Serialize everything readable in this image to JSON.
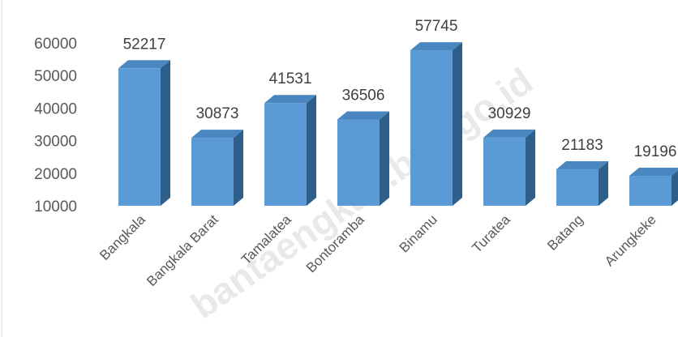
{
  "watermark": "bantaengkab.bps.go.id",
  "chart_data": {
    "type": "bar",
    "style": "3d-column",
    "categories": [
      "Bangkala",
      "Bangkala Barat",
      "Tamalatea",
      "Bontoramba",
      "Binamu",
      "Turatea",
      "Batang",
      "Arungkeke"
    ],
    "values": [
      52217,
      30873,
      41531,
      36506,
      57745,
      30929,
      21183,
      19196
    ],
    "title": "",
    "xlabel": "",
    "ylabel": "",
    "ylim": [
      10000,
      60000
    ],
    "yticks": [
      10000,
      20000,
      30000,
      40000,
      50000,
      60000
    ],
    "grid": false,
    "legend": "none",
    "colors": {
      "bar_front": "#5b9bd5",
      "bar_top": "#4a86c0",
      "bar_side": "#2e5f8a",
      "axis_text": "#595959",
      "data_label": "#404040"
    }
  }
}
